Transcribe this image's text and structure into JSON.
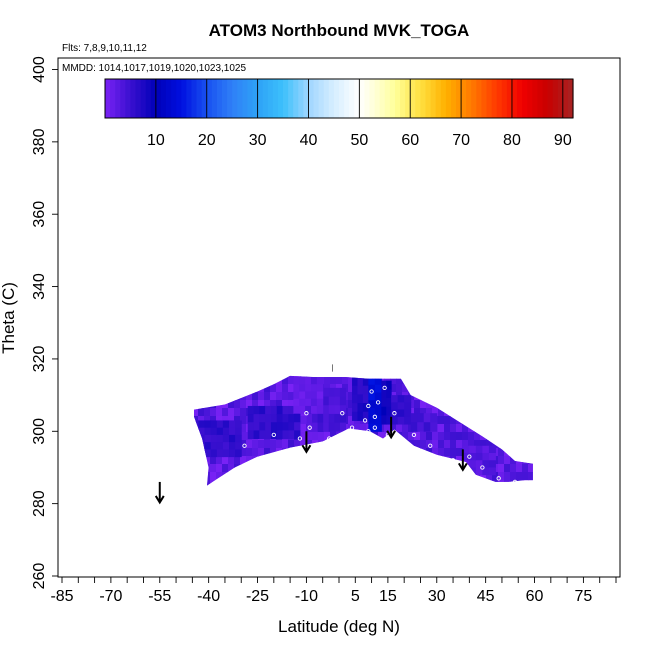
{
  "chart_data": {
    "type": "heatmap",
    "title": "ATOM3 Northbound MVK_TOGA",
    "subtitle_flights": "Flts: 7,8,9,10,11,12",
    "subtitle_dates": "MMDD: 1014,1017,1019,1020,1023,1025",
    "xlabel": "Latitude (deg N)",
    "ylabel": "Theta (C)",
    "xlim": [
      -85,
      85
    ],
    "ylim": [
      260,
      400
    ],
    "x_tick_labels": [
      "-85",
      "-70",
      "-55",
      "-40",
      "-25",
      "-10",
      "5",
      "15",
      "30",
      "45",
      "60",
      "75"
    ],
    "x_tick_values": [
      -85,
      -70,
      -55,
      -40,
      -25,
      -10,
      5,
      15,
      30,
      45,
      60,
      75
    ],
    "x_minor_step": 5,
    "y_tick_labels": [
      "260",
      "280",
      "300",
      "320",
      "340",
      "360",
      "380",
      "400"
    ],
    "y_tick_values": [
      260,
      280,
      300,
      320,
      340,
      360,
      380,
      400
    ],
    "colorbar": {
      "range": [
        0,
        92
      ],
      "tick_labels": [
        "10",
        "20",
        "30",
        "40",
        "50",
        "60",
        "70",
        "80",
        "90"
      ],
      "tick_values": [
        10,
        20,
        30,
        40,
        50,
        60,
        70,
        80,
        90
      ],
      "colors": [
        {
          "v": 0,
          "c": "#7a22f5"
        },
        {
          "v": 5,
          "c": "#3a10cf"
        },
        {
          "v": 10,
          "c": "#0000b8"
        },
        {
          "v": 15,
          "c": "#0010e0"
        },
        {
          "v": 20,
          "c": "#1850f0"
        },
        {
          "v": 25,
          "c": "#2f7ff7"
        },
        {
          "v": 30,
          "c": "#2ea2f7"
        },
        {
          "v": 35,
          "c": "#3cc0fb"
        },
        {
          "v": 40,
          "c": "#9fd6ff"
        },
        {
          "v": 45,
          "c": "#d6eeff"
        },
        {
          "v": 50,
          "c": "#ffffff"
        },
        {
          "v": 53,
          "c": "#ffffd6"
        },
        {
          "v": 57,
          "c": "#ffff9a"
        },
        {
          "v": 62,
          "c": "#ffe040"
        },
        {
          "v": 67,
          "c": "#ffb000"
        },
        {
          "v": 72,
          "c": "#ff7a00"
        },
        {
          "v": 77,
          "c": "#ff3a00"
        },
        {
          "v": 82,
          "c": "#f00000"
        },
        {
          "v": 87,
          "c": "#c80000"
        },
        {
          "v": 92,
          "c": "#a82424"
        }
      ]
    },
    "field_polygon": [
      [
        -40.5,
        285
      ],
      [
        -38,
        286.5
      ],
      [
        -32,
        290
      ],
      [
        -25,
        293
      ],
      [
        -15,
        295.5
      ],
      [
        -5,
        297.2
      ],
      [
        3,
        300.8
      ],
      [
        9.5,
        300
      ],
      [
        13.5,
        298
      ],
      [
        17,
        300.5
      ],
      [
        23,
        296
      ],
      [
        30,
        293.5
      ],
      [
        39,
        291.5
      ],
      [
        42,
        288
      ],
      [
        48,
        286
      ],
      [
        52,
        286
      ],
      [
        57,
        286.5
      ],
      [
        59.5,
        286.5
      ],
      [
        59.5,
        291
      ],
      [
        54,
        291.8
      ],
      [
        50,
        295
      ],
      [
        44,
        298.6
      ],
      [
        38,
        302
      ],
      [
        30,
        306.5
      ],
      [
        22,
        310
      ],
      [
        20,
        313
      ],
      [
        19,
        314.5
      ],
      [
        9,
        314.5
      ],
      [
        2,
        315
      ],
      [
        -8,
        315
      ],
      [
        -15,
        315.3
      ],
      [
        -20,
        313
      ],
      [
        -25,
        311
      ],
      [
        -35,
        307.4
      ],
      [
        -44.5,
        306
      ],
      [
        -44.5,
        304
      ],
      [
        -42,
        298
      ],
      [
        -40,
        290
      ]
    ],
    "field_patches": [
      {
        "lon": [
          -45,
          -30
        ],
        "theta": [
          293,
          303
        ],
        "v": 6
      },
      {
        "lon": [
          -28,
          -12
        ],
        "theta": [
          298,
          307
        ],
        "v": 6
      },
      {
        "lon": [
          -10,
          2
        ],
        "theta": [
          300,
          312
        ],
        "v": 4
      },
      {
        "lon": [
          4,
          9
        ],
        "theta": [
          303,
          315
        ],
        "v": 7
      },
      {
        "lon": [
          9,
          13
        ],
        "theta": [
          300,
          315
        ],
        "v": 14
      },
      {
        "lon": [
          13,
          16
        ],
        "theta": [
          302,
          314
        ],
        "v": 9
      },
      {
        "lon": [
          16,
          22
        ],
        "theta": [
          302,
          310
        ],
        "v": 6
      },
      {
        "lon": [
          22,
          30
        ],
        "theta": [
          300,
          305
        ],
        "v": 4
      },
      {
        "lon": [
          38,
          48
        ],
        "theta": [
          288,
          296
        ],
        "v": 3
      },
      {
        "lon": [
          -14,
          -5
        ],
        "theta": [
          305,
          315
        ],
        "v": 2
      }
    ],
    "arrows": [
      {
        "lat": -55,
        "theta": 286
      },
      {
        "lat": -10,
        "theta": 300
      },
      {
        "lat": 16,
        "theta": 304
      },
      {
        "lat": 38,
        "theta": 295
      }
    ],
    "markers": [
      {
        "lat": -42,
        "theta": 288
      },
      {
        "lat": -29,
        "theta": 296
      },
      {
        "lat": -20,
        "theta": 299
      },
      {
        "lat": -12,
        "theta": 298
      },
      {
        "lat": -10,
        "theta": 305
      },
      {
        "lat": -9,
        "theta": 301
      },
      {
        "lat": -3,
        "theta": 298
      },
      {
        "lat": 1,
        "theta": 305
      },
      {
        "lat": 4,
        "theta": 301
      },
      {
        "lat": 8,
        "theta": 303
      },
      {
        "lat": 9,
        "theta": 300
      },
      {
        "lat": 9,
        "theta": 307
      },
      {
        "lat": 10,
        "theta": 311
      },
      {
        "lat": 11,
        "theta": 304
      },
      {
        "lat": 11,
        "theta": 301
      },
      {
        "lat": 12,
        "theta": 308
      },
      {
        "lat": 14,
        "theta": 312
      },
      {
        "lat": 15,
        "theta": 299
      },
      {
        "lat": 17,
        "theta": 305
      },
      {
        "lat": 23,
        "theta": 299
      },
      {
        "lat": 28,
        "theta": 296
      },
      {
        "lat": 35,
        "theta": 292
      },
      {
        "lat": 37,
        "theta": 290
      },
      {
        "lat": 40,
        "theta": 293
      },
      {
        "lat": 44,
        "theta": 290
      },
      {
        "lat": 49,
        "theta": 287
      },
      {
        "lat": 54,
        "theta": 286
      }
    ]
  }
}
